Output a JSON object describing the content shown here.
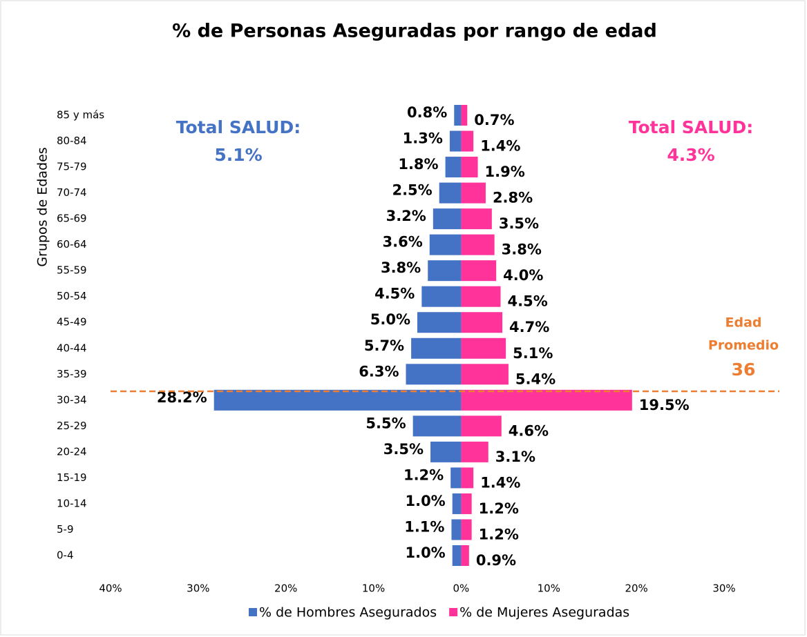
{
  "chart_data": {
    "type": "pyramid",
    "title": "% de Personas Aseguradas por rango de edad",
    "y_label": "Grupos de Edades",
    "categories": [
      "85 y más",
      "80-84",
      "75-79",
      "70-74",
      "65-69",
      "60-64",
      "55-59",
      "50-54",
      "45-49",
      "40-44",
      "35-39",
      "30-34",
      "25-29",
      "20-24",
      "15-19",
      "10-14",
      "5-9",
      "0-4"
    ],
    "series": [
      {
        "name": "% de Hombres Asegurados",
        "color": "#4472c4",
        "side": "left",
        "values": [
          0.8,
          1.3,
          1.8,
          2.5,
          3.2,
          3.6,
          3.8,
          4.5,
          5.0,
          5.7,
          6.3,
          28.2,
          5.5,
          3.5,
          1.2,
          1.0,
          1.1,
          1.0
        ],
        "value_labels": [
          "0.8%",
          "1.3%",
          "1.8%",
          "2.5%",
          "3.2%",
          "3.6%",
          "3.8%",
          "4.5%",
          "5.0%",
          "5.7%",
          "6.3%",
          "28.2%",
          "5.5%",
          "3.5%",
          "1.2%",
          "1.0%",
          "1.1%",
          "1.0%"
        ]
      },
      {
        "name": "% de Mujeres Aseguradas",
        "color": "#ff3399",
        "side": "right",
        "values": [
          0.7,
          1.4,
          1.9,
          2.8,
          3.5,
          3.8,
          4.0,
          4.5,
          4.7,
          5.1,
          5.4,
          19.5,
          4.6,
          3.1,
          1.4,
          1.2,
          1.2,
          0.9
        ],
        "value_labels": [
          "0.7%",
          "1.4%",
          "1.9%",
          "2.8%",
          "3.5%",
          "3.8%",
          "4.0%",
          "4.5%",
          "4.7%",
          "5.1%",
          "5.4%",
          "19.5%",
          "4.6%",
          "3.1%",
          "1.4%",
          "1.2%",
          "1.2%",
          "0.9%"
        ]
      }
    ],
    "xlim": [
      -40,
      30
    ],
    "xticks": [
      {
        "value": -40,
        "label": "40%"
      },
      {
        "value": -30,
        "label": "30%"
      },
      {
        "value": -20,
        "label": "20%"
      },
      {
        "value": -10,
        "label": "10%"
      },
      {
        "value": 0,
        "label": "0%"
      },
      {
        "value": 10,
        "label": "10%"
      },
      {
        "value": 20,
        "label": "20%"
      },
      {
        "value": 30,
        "label": "30%"
      }
    ],
    "annotations": {
      "left_total": [
        "Total SALUD:",
        "5.1%"
      ],
      "right_total": [
        "Total SALUD:",
        "4.3%"
      ],
      "average_age": [
        "Edad",
        "Promedio",
        "36"
      ]
    },
    "legend": "bottom"
  }
}
